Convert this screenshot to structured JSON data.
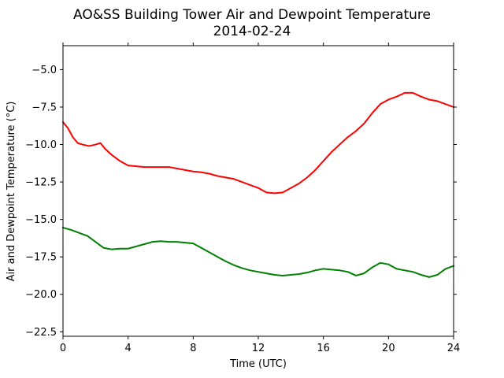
{
  "chart_data": {
    "type": "line",
    "title": "AO&SS Building Tower Air and Dewpoint Temperature",
    "subtitle": "2014-02-24",
    "xlabel": "Time (UTC)",
    "ylabel": "Air and Dewpoint Temperature (°C)",
    "xlim": [
      0,
      24
    ],
    "ylim": [
      -22.8,
      -3.4
    ],
    "xticks": [
      0,
      4,
      8,
      12,
      16,
      20,
      24
    ],
    "xtick_labels": [
      "0",
      "4",
      "8",
      "12",
      "16",
      "20",
      "24"
    ],
    "yticks": [
      -5.0,
      -7.5,
      -10.0,
      -12.5,
      -15.0,
      -17.5,
      -20.0,
      -22.5
    ],
    "ytick_labels": [
      "−5.0",
      "−7.5",
      "−10.0",
      "−12.5",
      "−15.0",
      "−17.5",
      "−20.0",
      "−22.5"
    ],
    "grid": false,
    "legend": "none",
    "series": [
      {
        "color": "#ff0000",
        "x": [
          0,
          0.3,
          0.6,
          0.9,
          1.2,
          1.6,
          2.0,
          2.3,
          2.6,
          3.0,
          3.5,
          4.0,
          4.5,
          5.0,
          5.5,
          6.0,
          6.5,
          7.0,
          7.5,
          8.0,
          8.5,
          9.0,
          9.5,
          10.0,
          10.5,
          11.0,
          11.5,
          12.0,
          12.5,
          13.0,
          13.5,
          14.0,
          14.5,
          15.0,
          15.5,
          16.0,
          16.5,
          17.0,
          17.5,
          18.0,
          18.5,
          19.0,
          19.5,
          20.0,
          20.5,
          21.0,
          21.5,
          22.0,
          22.5,
          23.0,
          23.5,
          24.0
        ],
        "y": [
          -8.5,
          -8.9,
          -9.5,
          -9.9,
          -10.0,
          -10.1,
          -10.0,
          -9.9,
          -10.3,
          -10.7,
          -11.1,
          -11.4,
          -11.45,
          -11.5,
          -11.5,
          -11.5,
          -11.5,
          -11.6,
          -11.7,
          -11.8,
          -11.85,
          -11.95,
          -12.1,
          -12.2,
          -12.3,
          -12.5,
          -12.7,
          -12.9,
          -13.2,
          -13.25,
          -13.2,
          -12.9,
          -12.6,
          -12.2,
          -11.7,
          -11.1,
          -10.5,
          -10.0,
          -9.5,
          -9.1,
          -8.6,
          -7.9,
          -7.3,
          -7.0,
          -6.8,
          -6.55,
          -6.55,
          -6.8,
          -7.0,
          -7.1,
          -7.3,
          -7.5
        ]
      },
      {
        "color": "#008000",
        "x": [
          0,
          0.5,
          1.0,
          1.5,
          2.0,
          2.5,
          3.0,
          3.5,
          4.0,
          4.5,
          5.0,
          5.5,
          6.0,
          6.5,
          7.0,
          7.5,
          8.0,
          8.5,
          9.0,
          9.5,
          10.0,
          10.5,
          11.0,
          11.5,
          12.0,
          12.5,
          13.0,
          13.5,
          14.0,
          14.5,
          15.0,
          15.5,
          16.0,
          16.5,
          17.0,
          17.5,
          18.0,
          18.5,
          19.0,
          19.5,
          20.0,
          20.5,
          21.0,
          21.5,
          22.0,
          22.5,
          23.0,
          23.5,
          24.0
        ],
        "y": [
          -15.55,
          -15.7,
          -15.9,
          -16.1,
          -16.5,
          -16.9,
          -17.0,
          -16.95,
          -16.95,
          -16.8,
          -16.65,
          -16.5,
          -16.45,
          -16.5,
          -16.5,
          -16.55,
          -16.6,
          -16.9,
          -17.2,
          -17.5,
          -17.8,
          -18.05,
          -18.25,
          -18.4,
          -18.5,
          -18.6,
          -18.7,
          -18.75,
          -18.7,
          -18.65,
          -18.55,
          -18.4,
          -18.3,
          -18.35,
          -18.4,
          -18.5,
          -18.75,
          -18.6,
          -18.2,
          -17.9,
          -18.0,
          -18.3,
          -18.4,
          -18.5,
          -18.7,
          -18.85,
          -18.7,
          -18.3,
          -18.1
        ]
      }
    ]
  }
}
